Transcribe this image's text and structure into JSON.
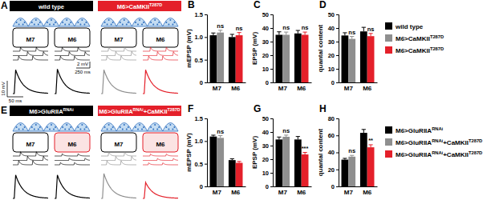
{
  "panels": {
    "A": {
      "label": "A",
      "headers": [
        {
          "parts": [
            {
              "text": "wild type"
            }
          ],
          "color": "#000000"
        },
        {
          "parts": [
            {
              "text": "M6>CaMKII"
            },
            {
              "text": "T287D",
              "sup": true
            }
          ],
          "color": "#e4202a"
        }
      ],
      "muscles": [
        "M7",
        "M6"
      ],
      "scale_bars": [
        "2 mV",
        "250 ms",
        "10 mV",
        "50 ms"
      ]
    },
    "E": {
      "label": "E",
      "headers": [
        {
          "parts": [
            {
              "text": "M6>GluRIIA"
            },
            {
              "text": "RNAi",
              "sup": true
            }
          ],
          "color": "#000000"
        },
        {
          "parts": [
            {
              "text": "M6>GluRIIA"
            },
            {
              "text": "RNAi",
              "sup": true
            },
            {
              "text": "+CaMKII"
            },
            {
              "text": "T287D",
              "sup": true
            }
          ],
          "color": "#e4202a"
        }
      ],
      "muscles": [
        "M7",
        "M6"
      ]
    }
  },
  "chart_data": [
    {
      "type": "bar",
      "title": "B",
      "y_label": "mEPSP (mV)",
      "categories": [
        "M7",
        "M6"
      ],
      "ylim": [
        0,
        1.5
      ],
      "yticks": [
        0,
        0.5,
        {
          "value": 1,
          "label": "1.0"
        },
        1.5
      ],
      "series": [
        {
          "color": "#000000",
          "values": [
            1.04,
            1.0
          ],
          "errors": [
            0.05,
            0.06
          ]
        },
        {
          "color": "#8f8f8f",
          "values": [
            1.1,
            null
          ],
          "errors": [
            0.05,
            null
          ]
        },
        {
          "color": "#e4202a",
          "values": [
            null,
            1.04
          ],
          "errors": [
            null,
            0.06
          ]
        }
      ],
      "annotations": [
        {
          "text": "ns",
          "series": 1,
          "category": 0
        },
        {
          "text": "ns",
          "series": 2,
          "category": 1
        }
      ]
    },
    {
      "type": "bar",
      "title": "C",
      "y_label": "EPSP (mV)",
      "categories": [
        "M7",
        "M6"
      ],
      "ylim": [
        0,
        50
      ],
      "yticks": [
        0,
        10,
        20,
        30,
        40,
        50
      ],
      "series": [
        {
          "color": "#000000",
          "values": [
            35,
            36
          ],
          "errors": [
            2.2,
            2.2
          ]
        },
        {
          "color": "#8f8f8f",
          "values": [
            35,
            null
          ],
          "errors": [
            2,
            null
          ]
        },
        {
          "color": "#e4202a",
          "values": [
            null,
            35
          ],
          "errors": [
            null,
            2
          ]
        }
      ],
      "annotations": [
        {
          "text": "ns",
          "series": 1,
          "category": 0
        },
        {
          "text": "ns",
          "series": 2,
          "category": 1
        }
      ]
    },
    {
      "type": "bar",
      "title": "D",
      "y_label": "quantal content",
      "categories": [
        "M7",
        "M6"
      ],
      "ylim": [
        0,
        50
      ],
      "yticks": [
        0,
        10,
        20,
        30,
        40,
        50
      ],
      "legend": "right",
      "series": [
        {
          "name": "wild type",
          "color": "#000000",
          "values": [
            34.5,
            37.5
          ],
          "errors": [
            2,
            3
          ]
        },
        {
          "name": "M6>CaMKIIT287D",
          "color": "#8f8f8f",
          "values": [
            32,
            null
          ],
          "errors": [
            1.8,
            null
          ]
        },
        {
          "name": "M6>CaMKIIT287D",
          "color": "#e4202a",
          "values": [
            null,
            34
          ],
          "errors": [
            null,
            2
          ]
        }
      ],
      "annotations": [
        {
          "text": "ns",
          "series": 1,
          "category": 0
        },
        {
          "text": "ns",
          "series": 2,
          "category": 1
        }
      ]
    },
    {
      "type": "bar",
      "title": "F",
      "y_label": "mEPSP (mV)",
      "categories": [
        "M7",
        "M6"
      ],
      "ylim": [
        0,
        1.5
      ],
      "yticks": [
        0,
        0.5,
        {
          "value": 1,
          "label": "1.0"
        },
        1.5
      ],
      "series": [
        {
          "color": "#000000",
          "values": [
            1.1,
            0.58
          ],
          "errors": [
            0.03,
            0.03
          ]
        },
        {
          "color": "#8f8f8f",
          "values": [
            1.07,
            null
          ],
          "errors": [
            0.05,
            null
          ]
        },
        {
          "color": "#e4202a",
          "values": [
            null,
            0.52
          ],
          "errors": [
            null,
            0.03
          ]
        }
      ],
      "annotations": [
        {
          "text": "ns",
          "series": 1,
          "category": 0
        }
      ]
    },
    {
      "type": "bar",
      "title": "G",
      "y_label": "EPSP (mV)",
      "categories": [
        "M7",
        "M6"
      ],
      "ylim": [
        0,
        50
      ],
      "yticks": [
        0,
        10,
        20,
        30,
        40,
        50
      ],
      "series": [
        {
          "color": "#000000",
          "values": [
            34.5,
            34.5
          ],
          "errors": [
            1.8,
            2.2
          ]
        },
        {
          "color": "#8f8f8f",
          "values": [
            36.5,
            null
          ],
          "errors": [
            1.2,
            null
          ]
        },
        {
          "color": "#e4202a",
          "values": [
            null,
            23.5
          ],
          "errors": [
            null,
            1.5
          ]
        }
      ],
      "annotations": [
        {
          "text": "ns",
          "series": 1,
          "category": 0
        },
        {
          "text": "***",
          "series": 2,
          "category": 1
        }
      ]
    },
    {
      "type": "bar",
      "title": "H",
      "y_label": "quantal content",
      "categories": [
        "M7",
        "M6"
      ],
      "ylim": [
        0,
        80
      ],
      "yticks": [
        0,
        20,
        40,
        60,
        80
      ],
      "legend": "right",
      "series": [
        {
          "name": "M6>GluRIIARNAi",
          "color": "#000000",
          "values": [
            31.5,
            63
          ],
          "errors": [
            1.5,
            4
          ]
        },
        {
          "name": "M6>GluRIIARNAi+CaMKIIT287D",
          "color": "#8f8f8f",
          "values": [
            35,
            null
          ],
          "errors": [
            1.5,
            null
          ]
        },
        {
          "name": "M6>GluRIIARNAi+CaMKIIT287D",
          "color": "#e4202a",
          "values": [
            null,
            46
          ],
          "errors": [
            null,
            3
          ]
        }
      ],
      "annotations": [
        {
          "text": "ns",
          "series": 1,
          "category": 0
        },
        {
          "text": "**",
          "series": 2,
          "category": 1
        }
      ]
    }
  ]
}
